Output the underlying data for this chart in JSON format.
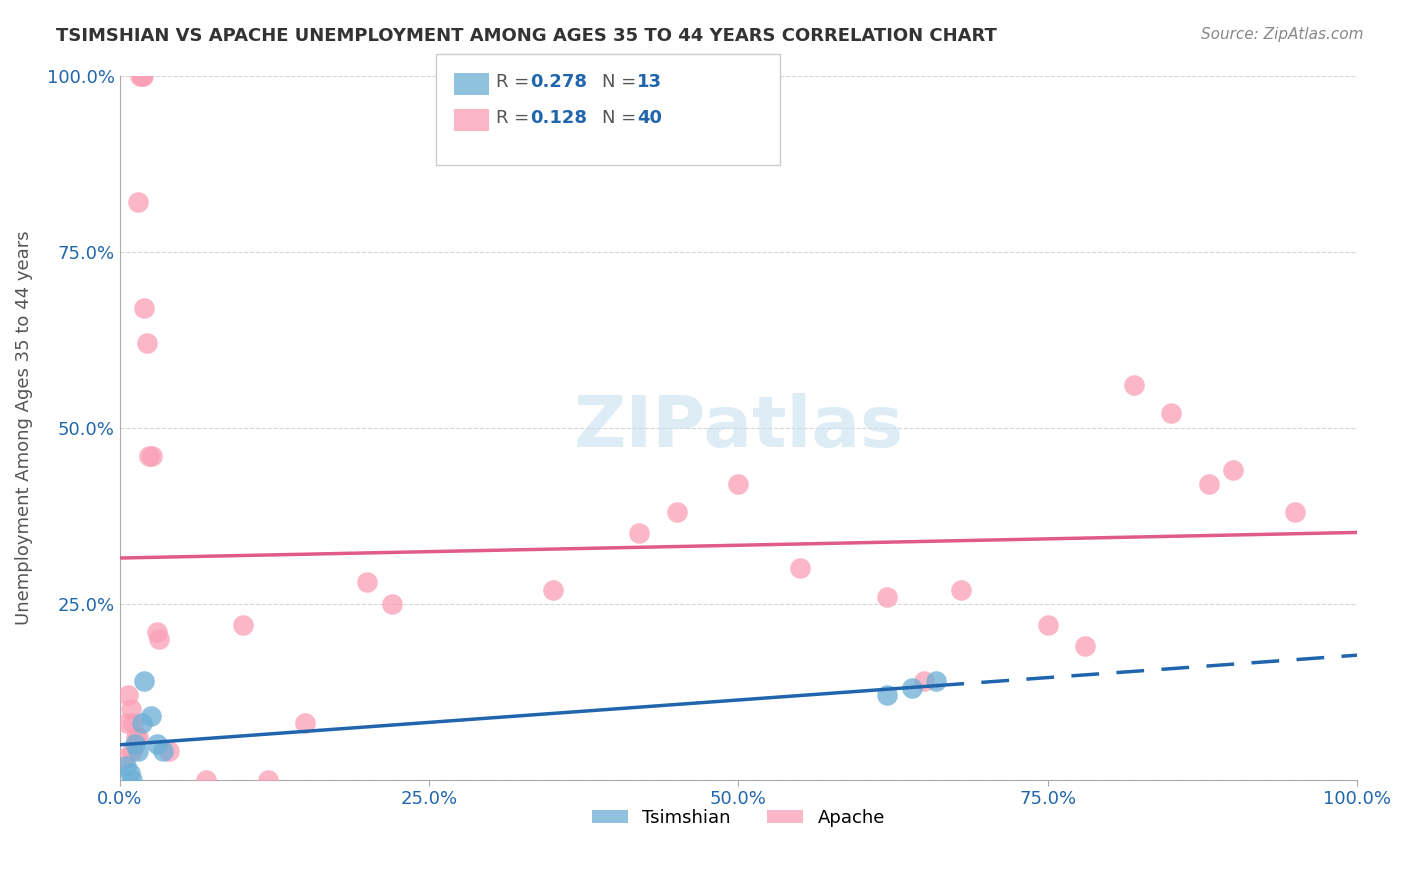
{
  "title": "TSIMSHIAN VS APACHE UNEMPLOYMENT AMONG AGES 35 TO 44 YEARS CORRELATION CHART",
  "source": "Source: ZipAtlas.com",
  "ylabel": "Unemployment Among Ages 35 to 44 years",
  "xlim": [
    0,
    1.0
  ],
  "ylim": [
    0,
    1.0
  ],
  "tsimshian_color": "#6baed6",
  "apache_color": "#fa9fb5",
  "trendline_tsimshian_color": "#2166ac",
  "trendline_apache_color": "#e05a8a",
  "R_tsimshian": 0.278,
  "N_tsimshian": 13,
  "R_apache": 0.128,
  "N_apache": 40,
  "watermark_text": "ZIPatlas",
  "tsimshian_x": [
    0.005,
    0.008,
    0.01,
    0.012,
    0.015,
    0.018,
    0.02,
    0.025,
    0.03,
    0.035,
    0.62,
    0.64,
    0.66
  ],
  "tsimshian_y": [
    0.02,
    0.01,
    0.0,
    0.05,
    0.04,
    0.08,
    0.14,
    0.09,
    0.05,
    0.04,
    0.12,
    0.13,
    0.14
  ],
  "apache_x": [
    0.004,
    0.006,
    0.007,
    0.009,
    0.01,
    0.011,
    0.013,
    0.015,
    0.015,
    0.016,
    0.018,
    0.019,
    0.02,
    0.022,
    0.024,
    0.026,
    0.03,
    0.032,
    0.04,
    0.07,
    0.1,
    0.12,
    0.15,
    0.2,
    0.22,
    0.35,
    0.42,
    0.45,
    0.5,
    0.55,
    0.62,
    0.65,
    0.68,
    0.75,
    0.78,
    0.82,
    0.85,
    0.88,
    0.9,
    0.95
  ],
  "apache_y": [
    0.03,
    0.08,
    0.12,
    0.1,
    0.04,
    0.08,
    0.06,
    0.06,
    0.82,
    1.0,
    1.0,
    1.0,
    0.67,
    0.62,
    0.46,
    0.46,
    0.21,
    0.2,
    0.04,
    0.0,
    0.22,
    0.0,
    0.08,
    0.28,
    0.25,
    0.27,
    0.35,
    0.38,
    0.42,
    0.3,
    0.26,
    0.14,
    0.27,
    0.22,
    0.19,
    0.56,
    0.52,
    0.42,
    0.44,
    0.38
  ]
}
